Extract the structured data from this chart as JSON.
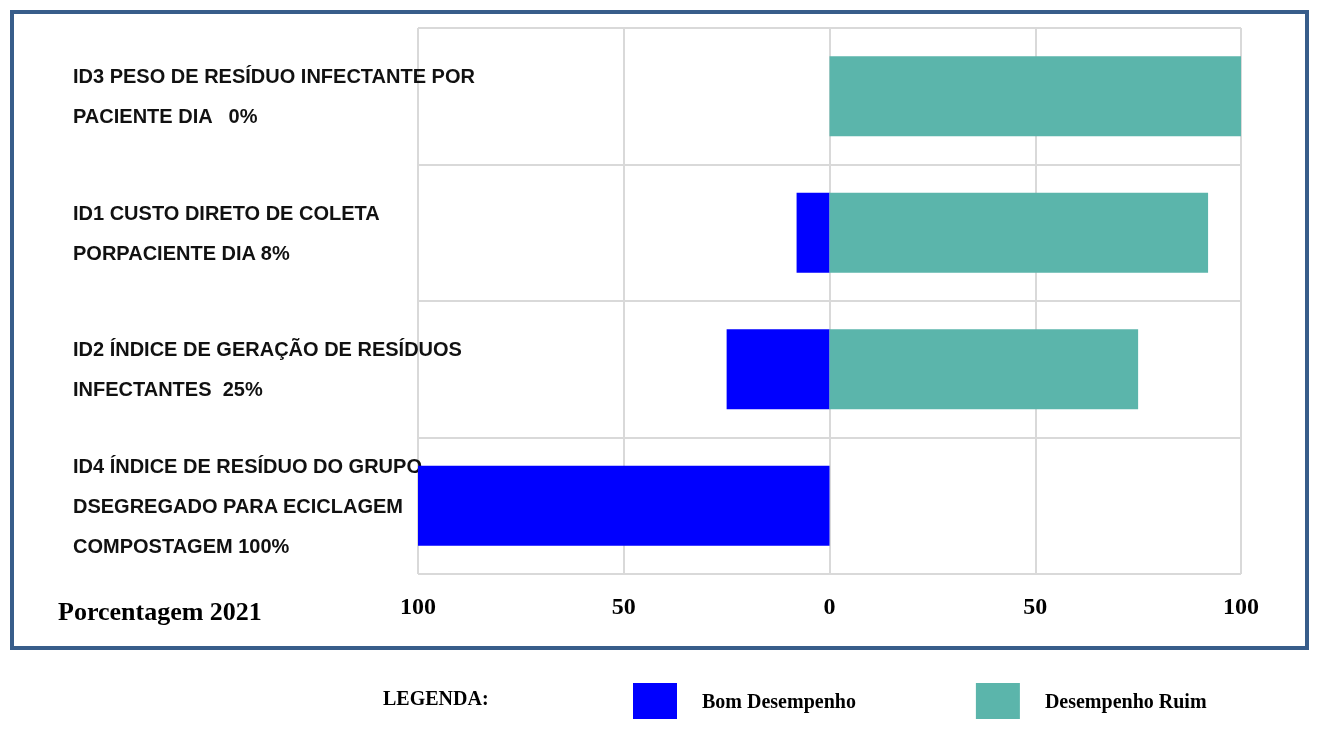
{
  "chart_data": {
    "type": "bar",
    "orientation": "horizontal",
    "stacked": true,
    "xlabel": "Porcentagem 2021",
    "legend_title": "LEGENDA:",
    "categories": [
      "ID3 PESO DE RESÍDUO INFECTANTE POR PACIENTE DIA   0%",
      "ID1 CUSTO DIRETO DE COLETA PORPACIENTE DIA 8%",
      "ID2 ÍNDICE DE GERAÇÃO DE RESÍDUOS INFECTANTES  25%",
      "ID4 ÍNDICE DE RESÍDUO DO GRUPO DSEGREGADO PARA ECICLAGEM COMPOSTAGEM 100%"
    ],
    "series": [
      {
        "name": "Bom Desempenho",
        "color": "#0000ff",
        "values": [
          0,
          -8,
          -25,
          -100
        ]
      },
      {
        "name": "Desempenho Ruim",
        "color": "#5bb5ab",
        "values": [
          100,
          92,
          75,
          0
        ]
      }
    ],
    "xlim": [
      -100,
      100
    ],
    "xticks": [
      {
        "value": -100,
        "label": "100"
      },
      {
        "value": -50,
        "label": "50"
      },
      0,
      50,
      100
    ],
    "grid": true,
    "legend": "bottom"
  }
}
